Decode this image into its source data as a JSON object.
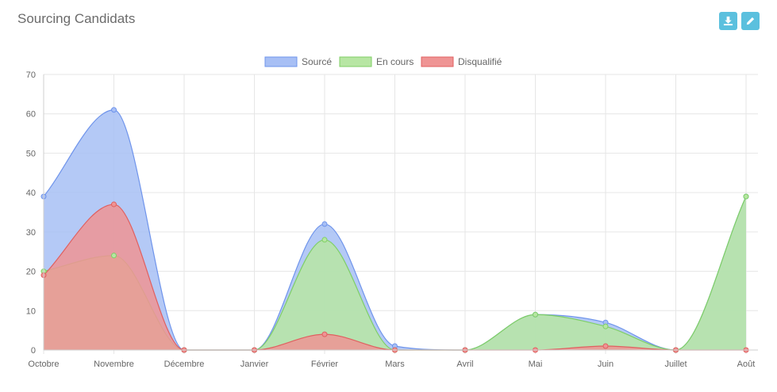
{
  "header": {
    "title": "Sourcing Candidats",
    "download_icon": "download-icon",
    "edit_icon": "pencil-icon"
  },
  "chart_data": {
    "type": "area",
    "categories": [
      "Octobre",
      "Novembre",
      "Décembre",
      "Janvier",
      "Février",
      "Mars",
      "Avril",
      "Mai",
      "Juin",
      "Juillet",
      "Août"
    ],
    "ylim": [
      0,
      70
    ],
    "yticks": [
      0,
      10,
      20,
      30,
      40,
      50,
      60,
      70
    ],
    "grid": true,
    "legend": "top-center",
    "series": [
      {
        "name": "Sourcé",
        "values": [
          39,
          61,
          0,
          0,
          32,
          1,
          0,
          9,
          7,
          0,
          39
        ],
        "fill": "#a7bff5",
        "stroke": "#6f94eb"
      },
      {
        "name": "En cours",
        "values": [
          20,
          24,
          0,
          0,
          28,
          0,
          0,
          9,
          6,
          0,
          39
        ],
        "fill": "#b7e6a3",
        "stroke": "#7fcf66"
      },
      {
        "name": "Disqualifié",
        "values": [
          19,
          37,
          0,
          0,
          4,
          0,
          0,
          0,
          1,
          0,
          0
        ],
        "fill": "#ef9494",
        "stroke": "#e06060"
      }
    ]
  }
}
